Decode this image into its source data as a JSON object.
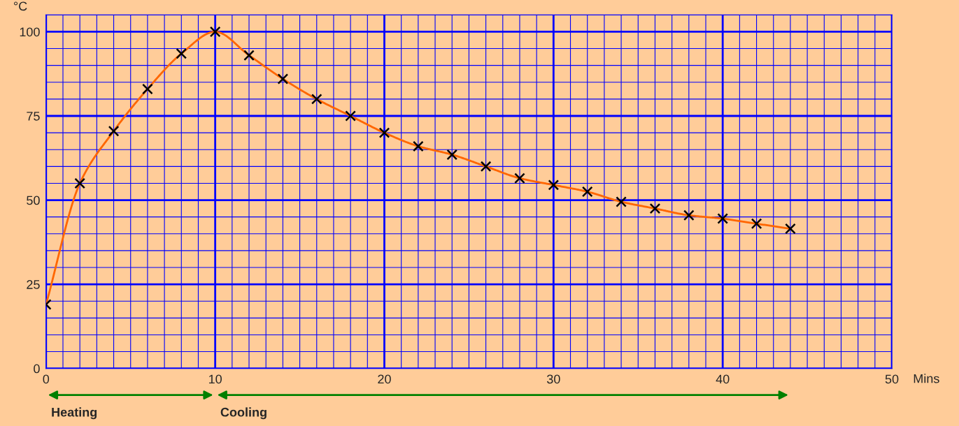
{
  "chart_data": {
    "type": "line",
    "xlabel": "Mins",
    "ylabel": "°C",
    "x": [
      0,
      2,
      4,
      6,
      8,
      10,
      12,
      14,
      16,
      18,
      20,
      22,
      24,
      26,
      28,
      30,
      32,
      34,
      36,
      38,
      40,
      42,
      44
    ],
    "series": [
      {
        "color": "#ff6600",
        "marker": "none",
        "values": [
          19,
          55,
          70.5,
          83,
          93.5,
          100,
          93,
          86,
          80,
          75,
          70,
          66,
          63.5,
          60,
          56.5,
          54.5,
          52.5,
          49.5,
          47.5,
          45.5,
          44.5,
          43,
          41.5
        ]
      },
      {
        "type": "scatter",
        "color": "#000000",
        "marker": "cross",
        "values": [
          19,
          55,
          70.5,
          83,
          93.5,
          100,
          93,
          86,
          80,
          75,
          70,
          66,
          63.5,
          60,
          56.5,
          54.5,
          52.5,
          49.5,
          47.5,
          45.5,
          44.5,
          43,
          41.5
        ]
      }
    ],
    "xlim": [
      0,
      50
    ],
    "ylim": [
      0,
      105
    ],
    "xticks": [
      0,
      {
        "value": 1,
        "label": null
      },
      {
        "value": 2,
        "label": null
      },
      {
        "value": 3,
        "label": null
      },
      {
        "value": 4,
        "label": null
      },
      {
        "value": 5,
        "label": null
      },
      {
        "value": 6,
        "label": null
      },
      {
        "value": 7,
        "label": null
      },
      {
        "value": 8,
        "label": null
      },
      {
        "value": 9,
        "label": null
      },
      10,
      {
        "value": 11,
        "label": null
      },
      {
        "value": 12,
        "label": null
      },
      {
        "value": 13,
        "label": null
      },
      {
        "value": 14,
        "label": null
      },
      {
        "value": 15,
        "label": null
      },
      {
        "value": 16,
        "label": null
      },
      {
        "value": 17,
        "label": null
      },
      {
        "value": 18,
        "label": null
      },
      {
        "value": 19,
        "label": null
      },
      20,
      {
        "value": 21,
        "label": null
      },
      {
        "value": 22,
        "label": null
      },
      {
        "value": 23,
        "label": null
      },
      {
        "value": 24,
        "label": null
      },
      {
        "value": 25,
        "label": null
      },
      {
        "value": 26,
        "label": null
      },
      {
        "value": 27,
        "label": null
      },
      {
        "value": 28,
        "label": null
      },
      {
        "value": 29,
        "label": null
      },
      30,
      {
        "value": 31,
        "label": null
      },
      {
        "value": 32,
        "label": null
      },
      {
        "value": 33,
        "label": null
      },
      {
        "value": 34,
        "label": null
      },
      {
        "value": 35,
        "label": null
      },
      {
        "value": 36,
        "label": null
      },
      {
        "value": 37,
        "label": null
      },
      {
        "value": 38,
        "label": null
      },
      {
        "value": 39,
        "label": null
      },
      40,
      {
        "value": 41,
        "label": null
      },
      {
        "value": 42,
        "label": null
      },
      {
        "value": 43,
        "label": null
      },
      {
        "value": 44,
        "label": null
      },
      {
        "value": 45,
        "label": null
      },
      {
        "value": 46,
        "label": null
      },
      {
        "value": 47,
        "label": null
      },
      {
        "value": 48,
        "label": null
      },
      {
        "value": 49,
        "label": null
      },
      50
    ],
    "yticks": [
      0,
      {
        "value": 5,
        "label": null
      },
      {
        "value": 10,
        "label": null
      },
      {
        "value": 15,
        "label": null
      },
      {
        "value": 20,
        "label": null
      },
      25,
      {
        "value": 30,
        "label": null
      },
      {
        "value": 35,
        "label": null
      },
      {
        "value": 40,
        "label": null
      },
      {
        "value": 45,
        "label": null
      },
      50,
      {
        "value": 55,
        "label": null
      },
      {
        "value": 60,
        "label": null
      },
      {
        "value": 65,
        "label": null
      },
      {
        "value": 70,
        "label": null
      },
      75,
      {
        "value": 80,
        "label": null
      },
      {
        "value": 85,
        "label": null
      },
      {
        "value": 90,
        "label": null
      },
      {
        "value": 95,
        "label": null
      },
      100,
      {
        "value": 105,
        "label": null
      }
    ],
    "grid": true,
    "legend": false,
    "annotations": [
      "Heating",
      "Cooling"
    ]
  }
}
